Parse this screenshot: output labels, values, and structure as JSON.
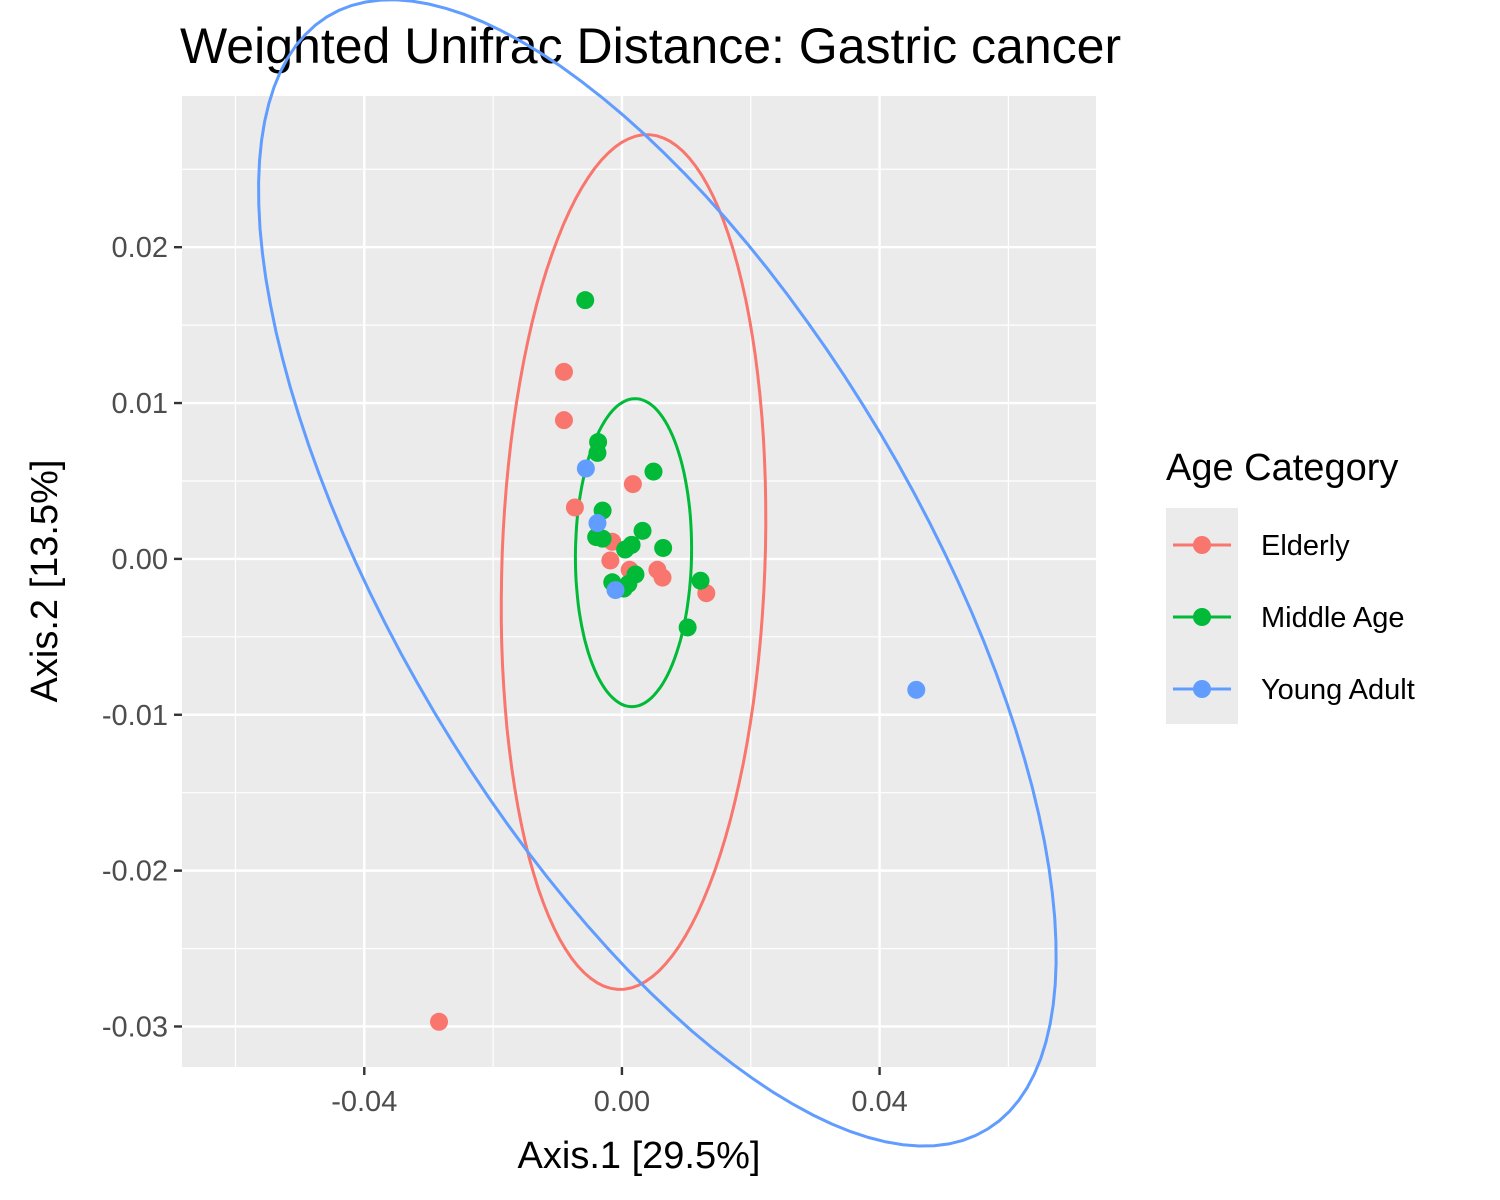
{
  "chart_data": {
    "type": "scatter",
    "title": "Weighted Unifrac Distance: Gastric cancer",
    "xlabel": "Axis.1   [29.5%]",
    "ylabel": "Axis.2   [13.5%]",
    "xlim": [
      -0.0683,
      0.0736
    ],
    "ylim": [
      -0.0326,
      0.0297
    ],
    "x_ticks": [
      -0.04,
      0.0,
      0.04
    ],
    "x_tick_labels": [
      "-0.04",
      "0.00",
      "0.04"
    ],
    "y_ticks": [
      -0.03,
      -0.02,
      -0.01,
      0.0,
      0.01,
      0.02
    ],
    "y_tick_labels": [
      "-0.03",
      "-0.02",
      "-0.01",
      "0.00",
      "0.01",
      "0.02"
    ],
    "grid": true,
    "legend": {
      "title": "Age Category",
      "position": "right"
    },
    "series": [
      {
        "name": "Elderly",
        "color": "#F8766D",
        "points": [
          {
            "x": -0.009,
            "y": 0.012
          },
          {
            "x": -0.009,
            "y": 0.0089
          },
          {
            "x": -0.0073,
            "y": 0.0033
          },
          {
            "x": 0.0017,
            "y": 0.0048
          },
          {
            "x": -0.0015,
            "y": 0.0011
          },
          {
            "x": -0.0018,
            "y": -0.0001
          },
          {
            "x": 0.0012,
            "y": -0.0007
          },
          {
            "x": 0.0055,
            "y": -0.0007
          },
          {
            "x": 0.0063,
            "y": -0.0012
          },
          {
            "x": 0.0131,
            "y": -0.0022
          },
          {
            "x": -0.0284,
            "y": -0.0297
          }
        ],
        "ellipse": {
          "cx": 0.0018,
          "cy": -0.0002,
          "semi_major": 0.0276,
          "semi_minor": 0.0203,
          "rotation_deg": 80.4
        }
      },
      {
        "name": "Middle Age",
        "color": "#00BA38",
        "points": [
          {
            "x": -0.0057,
            "y": 0.0166
          },
          {
            "x": -0.0037,
            "y": 0.0075
          },
          {
            "x": -0.0038,
            "y": 0.0068
          },
          {
            "x": 0.0049,
            "y": 0.0056
          },
          {
            "x": -0.003,
            "y": 0.0031
          },
          {
            "x": 0.0032,
            "y": 0.0018
          },
          {
            "x": -0.004,
            "y": 0.0014
          },
          {
            "x": -0.003,
            "y": 0.0013
          },
          {
            "x": 0.0015,
            "y": 0.0009
          },
          {
            "x": 0.0005,
            "y": 0.0006
          },
          {
            "x": 0.0064,
            "y": 0.0007
          },
          {
            "x": 0.0021,
            "y": -0.001
          },
          {
            "x": -0.0015,
            "y": -0.0015
          },
          {
            "x": 0.001,
            "y": -0.0016
          },
          {
            "x": 0.0003,
            "y": -0.0019
          },
          {
            "x": 0.0122,
            "y": -0.0014
          },
          {
            "x": 0.0102,
            "y": -0.0044
          }
        ],
        "ellipse": {
          "cx": 0.0018,
          "cy": 0.0004,
          "semi_major": 0.0099,
          "semi_minor": 0.009,
          "rotation_deg": 81.7
        }
      },
      {
        "name": "Young Adult",
        "color": "#619CFF",
        "points": [
          {
            "x": -0.0056,
            "y": 0.0058
          },
          {
            "x": -0.0038,
            "y": 0.0023
          },
          {
            "x": -0.001,
            "y": -0.002
          },
          {
            "x": 0.0457,
            "y": -0.0084
          }
        ],
        "ellipse": {
          "cx": 0.0055,
          "cy": -0.0009,
          "semi_major": 0.0675,
          "semi_minor": 0.0251,
          "rotation_deg": -25.4
        }
      }
    ]
  }
}
